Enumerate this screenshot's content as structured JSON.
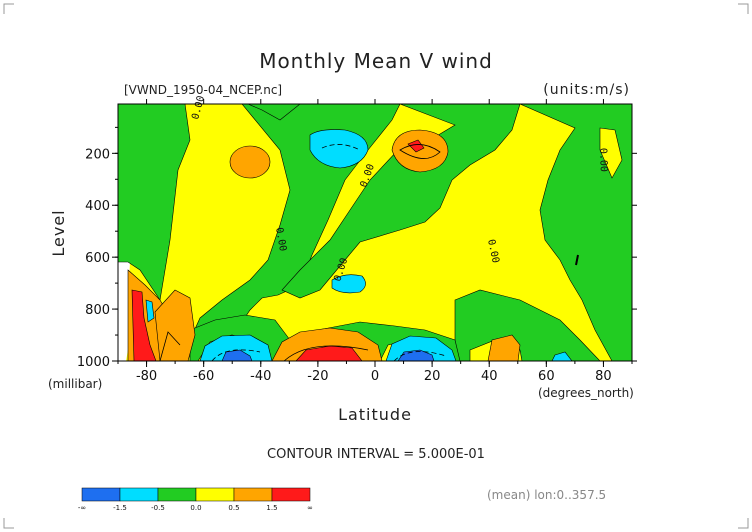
{
  "chart_data": {
    "type": "heatmap",
    "title": "Monthly Mean V wind",
    "dataset_label": "[VWND_1950-04_NCEP.nc]",
    "units_label": "(units:m/s)",
    "xlabel": "Latitude",
    "x_units": "(degrees_north)",
    "ylabel": "Level",
    "y_units": "(millibar)",
    "xlim": [
      -90,
      90
    ],
    "ylim": [
      1000,
      10
    ],
    "x_ticks": [
      "-80",
      "-60",
      "-40",
      "-20",
      "0",
      "20",
      "40",
      "60",
      "80"
    ],
    "y_ticks": [
      "200",
      "400",
      "600",
      "800",
      "1000"
    ],
    "contour_interval_text": "CONTOUR INTERVAL = 5.000E-01",
    "mean_text": "(mean) lon:0..357.5",
    "zero_contour_label": "0.00",
    "colorbar": {
      "labels": [
        "-∞",
        "-1.5",
        "-0.5",
        "0.0",
        "0.5",
        "1.5",
        "∞"
      ],
      "colors": [
        "#1e6ff0",
        "#00ddff",
        "#22cc22",
        "#ffff00",
        "#ffa500",
        "#ff1a1a"
      ]
    }
  }
}
